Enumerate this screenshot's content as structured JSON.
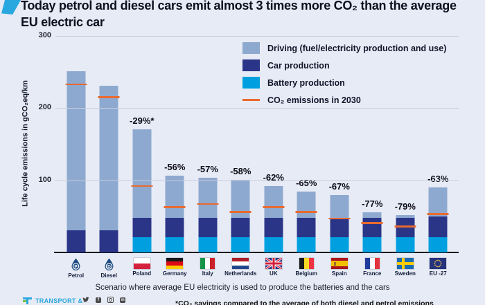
{
  "page": {
    "background": "#e7ebf6",
    "accent_color": "#29a8e0"
  },
  "header": {
    "title": "Today petrol and diesel cars emit almost 3 times more CO₂ than the average EU electric car",
    "title_line1": "Today petrol and diesel cars emit almost 3 times more CO₂ than the average",
    "title_line2": "EU electric car"
  },
  "legend": {
    "items": [
      {
        "label": "Driving (fuel/electricity production and use)",
        "color": "#8ea9cf",
        "type": "swatch"
      },
      {
        "label": "Car production",
        "color": "#2b3588",
        "type": "swatch"
      },
      {
        "label": "Battery production",
        "color": "#00a0e0",
        "type": "swatch"
      },
      {
        "label": "CO₂ emissions in 2030",
        "color": "#ea6a2f",
        "type": "line"
      }
    ]
  },
  "chart_data": {
    "type": "bar",
    "stacked": true,
    "title": "Today petrol and diesel cars emit almost 3 times more CO₂ than the average EU electric car",
    "ylabel": "Life cycle emissions in gCO₂eq/km",
    "ylim": [
      0,
      300
    ],
    "yticks": [
      100,
      200,
      300
    ],
    "grid": true,
    "legend_position": "top-right",
    "categories": [
      "Petrol",
      "Diesel",
      "Poland",
      "Germany",
      "Italy",
      "Netherlands",
      "UK",
      "Belgium",
      "Spain",
      "France",
      "Sweden",
      "EU -27"
    ],
    "series": [
      {
        "name": "Battery production",
        "color": "#00a0e0",
        "values": [
          0,
          0,
          21,
          21,
          21,
          21,
          21,
          21,
          21,
          21,
          21,
          21
        ]
      },
      {
        "name": "Car production",
        "color": "#2b3588",
        "values": [
          31,
          31,
          27,
          27,
          27,
          27,
          27,
          27,
          27,
          27,
          27,
          29
        ]
      },
      {
        "name": "Driving (fuel/electricity production and use)",
        "color": "#8ea9cf",
        "values": [
          220,
          200,
          123,
          58,
          56,
          53,
          44,
          36,
          32,
          8,
          4,
          40
        ]
      }
    ],
    "totals": [
      251,
      231,
      171,
      106,
      104,
      101,
      92,
      84,
      80,
      56,
      52,
      90
    ],
    "co2_2030_line": {
      "name": "CO₂ emissions in 2030",
      "color": "#ea6a2f",
      "values": [
        233,
        215,
        92,
        63,
        67,
        56,
        63,
        56,
        47,
        41,
        36,
        53
      ]
    },
    "bar_labels": [
      "",
      "",
      "-29%*",
      "-56%",
      "-57%",
      "-58%",
      "-62%",
      "-65%",
      "-67%",
      "-77%",
      "-79%",
      "-63%"
    ],
    "category_icons": [
      {
        "name": "petrol-drop-icon",
        "kind": "drop",
        "letter": "P",
        "color": "#1b4a80"
      },
      {
        "name": "diesel-drop-icon",
        "kind": "drop",
        "letter": "D",
        "color": "#1b4a80"
      },
      {
        "name": "flag-poland-icon",
        "kind": "h",
        "colors": [
          "#ffffff",
          "#d4213d"
        ]
      },
      {
        "name": "flag-germany-icon",
        "kind": "h",
        "colors": [
          "#1a1a1a",
          "#dd0b15",
          "#ffcc00"
        ]
      },
      {
        "name": "flag-italy-icon",
        "kind": "v",
        "colors": [
          "#159447",
          "#ffffff",
          "#cd212a"
        ]
      },
      {
        "name": "flag-netherlands-icon",
        "kind": "h",
        "colors": [
          "#ae1c28",
          "#ffffff",
          "#21468b"
        ]
      },
      {
        "name": "flag-uk-icon",
        "kind": "uk",
        "colors": [
          "#26337c",
          "#ffffff",
          "#d4213d"
        ]
      },
      {
        "name": "flag-belgium-icon",
        "kind": "v",
        "colors": [
          "#1a1a1a",
          "#fdda24",
          "#ef3340"
        ]
      },
      {
        "name": "flag-spain-icon",
        "kind": "spain",
        "colors": [
          "#aa151b",
          "#f1bf00",
          "#9b6a2f"
        ]
      },
      {
        "name": "flag-france-icon",
        "kind": "v",
        "colors": [
          "#1f3c9c",
          "#ffffff",
          "#e1333c"
        ]
      },
      {
        "name": "flag-sweden-icon",
        "kind": "sweden",
        "colors": [
          "#1e6cb0",
          "#fecc02"
        ]
      },
      {
        "name": "flag-eu-icon",
        "kind": "eu",
        "colors": [
          "#26337c",
          "#f7c948"
        ]
      }
    ]
  },
  "footnotes": {
    "scenario": "Scenario where average EU electricity is used to produce the batteries and the cars",
    "asterisk": "*CO₂ savings compared to the average of both diesel and petrol emissions"
  },
  "footer": {
    "logo_text": "TRANSPORT &",
    "social": [
      "twitter",
      "facebook",
      "instagram",
      "linkedin"
    ]
  }
}
